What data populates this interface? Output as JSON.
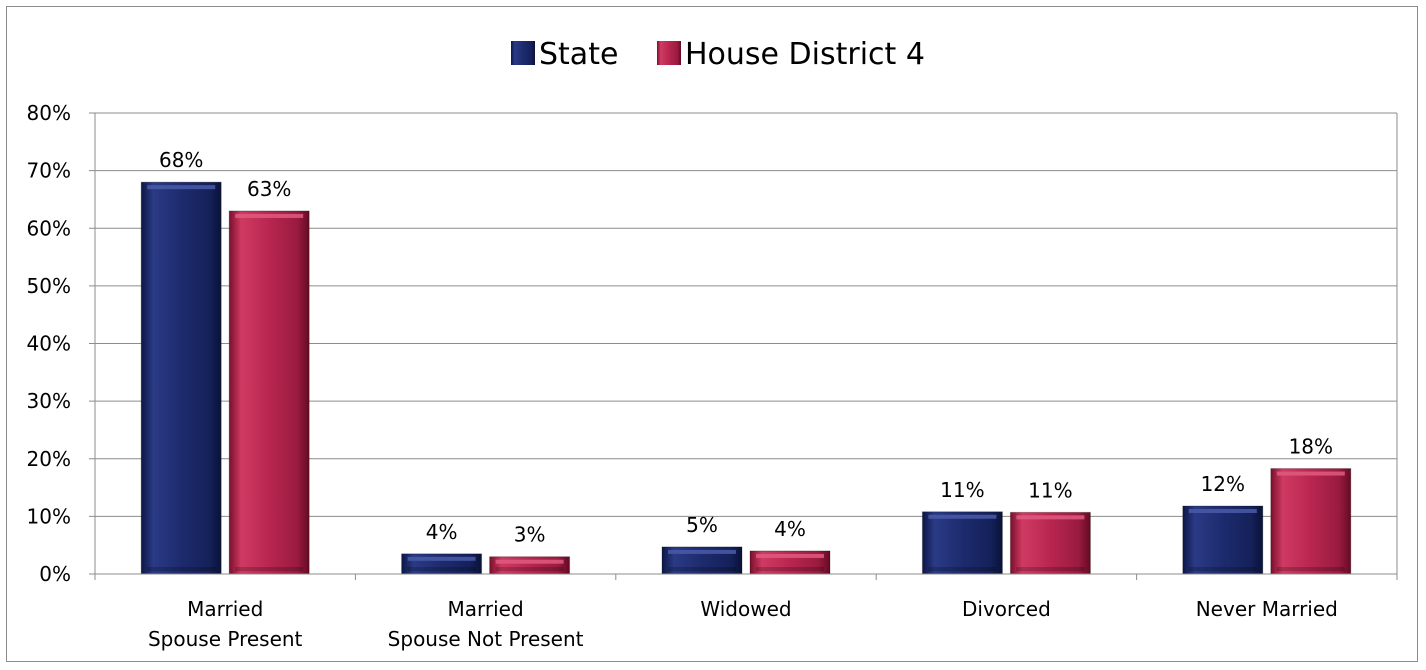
{
  "chart_data": {
    "type": "bar",
    "categories": [
      [
        "Married",
        "Spouse Present"
      ],
      [
        "Married",
        "Spouse Not Present"
      ],
      [
        "Widowed"
      ],
      [
        "Divorced"
      ],
      [
        "Never Married"
      ]
    ],
    "series": [
      {
        "name": "State",
        "values": [
          68,
          3.5,
          4.7,
          10.8,
          11.8
        ],
        "labels": [
          "68%",
          "4%",
          "5%",
          "11%",
          "12%"
        ],
        "color": "#1f2d6b"
      },
      {
        "name": "House District 4",
        "values": [
          63,
          3.0,
          4.0,
          10.7,
          18.3
        ],
        "labels": [
          "63%",
          "3%",
          "4%",
          "11%",
          "18%"
        ],
        "color": "#b3224a"
      }
    ],
    "ylim": [
      0,
      80
    ],
    "yticks": [
      "0%",
      "10%",
      "20%",
      "30%",
      "40%",
      "50%",
      "60%",
      "70%",
      "80%"
    ],
    "grid": true,
    "legend_position": "top-center"
  }
}
